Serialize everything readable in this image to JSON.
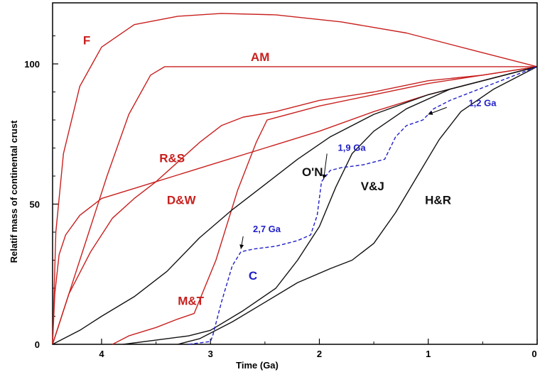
{
  "chart_data": {
    "type": "line",
    "title": "",
    "xlabel": "Time (Ga)",
    "ylabel": "Relatif mass of continental crust",
    "xlim": [
      4.45,
      0
    ],
    "ylim": [
      0,
      120
    ],
    "x_ticks": [
      {
        "value": 4,
        "label": "4"
      },
      {
        "value": 3,
        "label": "3"
      },
      {
        "value": 2,
        "label": "2"
      },
      {
        "value": 1,
        "label": "1"
      },
      {
        "value": 0,
        "label": "0"
      }
    ],
    "y_ticks": [
      {
        "value": 0,
        "label": "0"
      },
      {
        "value": 50,
        "label": "50"
      },
      {
        "value": 100,
        "label": "100"
      }
    ],
    "grid": false,
    "colors": {
      "red": "#c8201e",
      "black": "#111111",
      "blue": "#1f1fc8"
    },
    "series": [
      {
        "name": "F",
        "color": "red",
        "dash": false,
        "label_at": [
          4.17,
          107
        ],
        "points": [
          [
            4.45,
            0
          ],
          [
            4.42,
            40
          ],
          [
            4.35,
            68
          ],
          [
            4.2,
            92
          ],
          [
            4.0,
            106
          ],
          [
            3.7,
            114
          ],
          [
            3.3,
            117
          ],
          [
            2.9,
            118
          ],
          [
            2.4,
            117.5
          ],
          [
            1.8,
            115
          ],
          [
            1.2,
            111
          ],
          [
            0.6,
            105
          ],
          [
            0,
            99
          ]
        ]
      },
      {
        "name": "AM",
        "color": "red",
        "dash": false,
        "label_at": [
          2.63,
          101
        ],
        "points": [
          [
            4.45,
            0
          ],
          [
            4.2,
            30
          ],
          [
            3.95,
            60
          ],
          [
            3.75,
            82
          ],
          [
            3.55,
            96
          ],
          [
            3.42,
            99
          ],
          [
            3.0,
            99
          ],
          [
            2.0,
            99
          ],
          [
            1.0,
            99
          ],
          [
            0,
            99
          ]
        ]
      },
      {
        "name": "R&S",
        "color": "red",
        "dash": false,
        "label_at": [
          3.47,
          65
        ],
        "points": [
          [
            4.45,
            0
          ],
          [
            4.43,
            18
          ],
          [
            4.39,
            32
          ],
          [
            4.33,
            39
          ],
          [
            4.2,
            46
          ],
          [
            4.0,
            52
          ],
          [
            3.5,
            58
          ],
          [
            3.0,
            64
          ],
          [
            2.5,
            70
          ],
          [
            2.0,
            76
          ],
          [
            1.5,
            83
          ],
          [
            1.0,
            89
          ],
          [
            0.5,
            94
          ],
          [
            0,
            99
          ]
        ]
      },
      {
        "name": "D&W",
        "color": "red",
        "dash": false,
        "label_at": [
          3.4,
          50
        ],
        "points": [
          [
            4.45,
            0
          ],
          [
            4.3,
            18
          ],
          [
            4.1,
            33
          ],
          [
            3.9,
            45
          ],
          [
            3.7,
            52
          ],
          [
            3.5,
            58
          ],
          [
            3.3,
            65
          ],
          [
            3.1,
            72
          ],
          [
            2.9,
            78
          ],
          [
            2.7,
            81
          ],
          [
            2.4,
            83
          ],
          [
            2.0,
            87
          ],
          [
            1.5,
            90
          ],
          [
            1.0,
            94
          ],
          [
            0.5,
            96
          ],
          [
            0,
            99
          ]
        ]
      },
      {
        "name": "M&T",
        "color": "red",
        "dash": false,
        "label_at": [
          3.3,
          14
        ],
        "points": [
          [
            3.9,
            0
          ],
          [
            3.75,
            3
          ],
          [
            3.5,
            6
          ],
          [
            3.3,
            9
          ],
          [
            3.15,
            11
          ],
          [
            2.95,
            30
          ],
          [
            2.75,
            55
          ],
          [
            2.58,
            72
          ],
          [
            2.48,
            80
          ],
          [
            2.0,
            85
          ],
          [
            1.5,
            89
          ],
          [
            1.0,
            93
          ],
          [
            0.5,
            96
          ],
          [
            0,
            99
          ]
        ]
      },
      {
        "name": "O'N",
        "color": "black",
        "dash": false,
        "label_at": [
          2.16,
          60
        ],
        "points": [
          [
            4.45,
            0
          ],
          [
            4.2,
            5
          ],
          [
            4.0,
            10
          ],
          [
            3.7,
            17
          ],
          [
            3.4,
            26
          ],
          [
            3.1,
            38
          ],
          [
            2.8,
            48
          ],
          [
            2.5,
            57
          ],
          [
            2.2,
            66
          ],
          [
            1.9,
            74
          ],
          [
            1.5,
            82
          ],
          [
            1.0,
            89
          ],
          [
            0.5,
            94
          ],
          [
            0,
            99
          ]
        ]
      },
      {
        "name": "V&J",
        "color": "black",
        "dash": false,
        "label_at": [
          1.62,
          55
        ],
        "points": [
          [
            3.8,
            0
          ],
          [
            3.4,
            2
          ],
          [
            3.2,
            3
          ],
          [
            3.0,
            5
          ],
          [
            2.7,
            12
          ],
          [
            2.4,
            20
          ],
          [
            2.2,
            30
          ],
          [
            2.0,
            42
          ],
          [
            1.85,
            56
          ],
          [
            1.7,
            68
          ],
          [
            1.5,
            76
          ],
          [
            1.2,
            84
          ],
          [
            0.8,
            91
          ],
          [
            0.4,
            95
          ],
          [
            0,
            99
          ]
        ]
      },
      {
        "name": "H&R",
        "color": "black",
        "dash": false,
        "label_at": [
          1.03,
          50
        ],
        "points": [
          [
            3.3,
            0
          ],
          [
            3.1,
            2
          ],
          [
            2.8,
            8
          ],
          [
            2.5,
            15
          ],
          [
            2.2,
            22
          ],
          [
            1.9,
            27
          ],
          [
            1.7,
            30
          ],
          [
            1.5,
            36
          ],
          [
            1.3,
            47
          ],
          [
            1.1,
            60
          ],
          [
            0.9,
            73
          ],
          [
            0.7,
            83
          ],
          [
            0.4,
            91
          ],
          [
            0.2,
            95
          ],
          [
            0,
            99
          ]
        ]
      },
      {
        "name": "C",
        "color": "blue",
        "dash": true,
        "label_at": [
          2.65,
          23
        ],
        "points": [
          [
            3.2,
            0
          ],
          [
            3.0,
            1
          ],
          [
            2.98,
            3
          ],
          [
            2.9,
            15
          ],
          [
            2.8,
            28
          ],
          [
            2.72,
            33
          ],
          [
            2.6,
            34
          ],
          [
            2.4,
            35
          ],
          [
            2.2,
            37
          ],
          [
            2.08,
            39
          ],
          [
            2.02,
            46
          ],
          [
            1.98,
            58
          ],
          [
            1.9,
            62
          ],
          [
            1.8,
            63
          ],
          [
            1.6,
            64
          ],
          [
            1.4,
            66
          ],
          [
            1.3,
            74
          ],
          [
            1.2,
            78
          ],
          [
            1.05,
            80
          ],
          [
            0.95,
            84
          ],
          [
            0.8,
            87
          ],
          [
            0.6,
            90
          ],
          [
            0.4,
            93
          ],
          [
            0.2,
            96
          ],
          [
            0,
            99
          ]
        ]
      }
    ],
    "annotations": [
      {
        "text": "1,9 Ga",
        "color": "blue",
        "label_at": [
          1.83,
          69
        ],
        "arrow_from": [
          1.93,
          68
        ],
        "arrow_to": [
          1.96,
          59
        ]
      },
      {
        "text": "2,7 Ga",
        "color": "blue",
        "label_at": [
          2.61,
          40
        ],
        "arrow_from": [
          2.7,
          38.5
        ],
        "arrow_to": [
          2.72,
          34
        ]
      },
      {
        "text": "1,2 Ga",
        "color": "blue",
        "label_at": [
          0.63,
          85
        ],
        "arrow_from": [
          0.83,
          84.5
        ],
        "arrow_to": [
          1.0,
          82
        ]
      }
    ]
  }
}
